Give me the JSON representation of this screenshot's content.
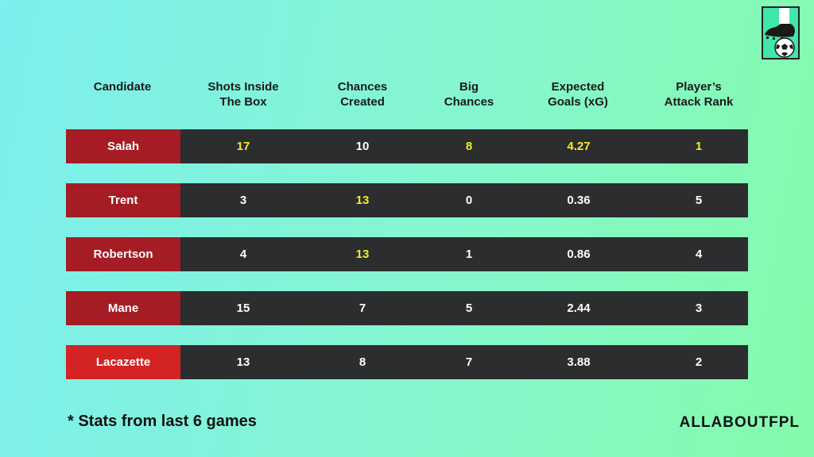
{
  "headers": [
    {
      "line1": "Candidate",
      "line2": ""
    },
    {
      "line1": "Shots Inside",
      "line2": "The Box"
    },
    {
      "line1": "Chances",
      "line2": "Created"
    },
    {
      "line1": "Big",
      "line2": "Chances"
    },
    {
      "line1": "Expected",
      "line2": "Goals (xG)"
    },
    {
      "line1": "Player’s",
      "line2": "Attack Rank"
    }
  ],
  "rows": [
    {
      "name": "Salah",
      "cells": [
        "17",
        "10",
        "8",
        "4.27",
        "1"
      ],
      "highlight": [
        true,
        false,
        true,
        true,
        true
      ]
    },
    {
      "name": "Trent",
      "cells": [
        "3",
        "13",
        "0",
        "0.36",
        "5"
      ],
      "highlight": [
        false,
        true,
        false,
        false,
        false
      ]
    },
    {
      "name": "Robertson",
      "cells": [
        "4",
        "13",
        "1",
        "0.86",
        "4"
      ],
      "highlight": [
        false,
        true,
        false,
        false,
        false
      ]
    },
    {
      "name": "Mane",
      "cells": [
        "15",
        "7",
        "5",
        "2.44",
        "3"
      ],
      "highlight": [
        false,
        false,
        false,
        false,
        false
      ]
    },
    {
      "name": "Lacazette",
      "cells": [
        "13",
        "8",
        "7",
        "3.88",
        "2"
      ],
      "highlight": [
        false,
        false,
        false,
        false,
        false
      ]
    }
  ],
  "colors": {
    "liverpool_red": "#a51c24",
    "arsenal_red": "#d42323",
    "row_dark": "#2c2d2e",
    "highlight_yellow": "#f2ec2b"
  },
  "footnote": "*  Stats from last 6 games",
  "brand": "ALLABOUTFPL",
  "logo_icon": "boot-and-football-icon"
}
